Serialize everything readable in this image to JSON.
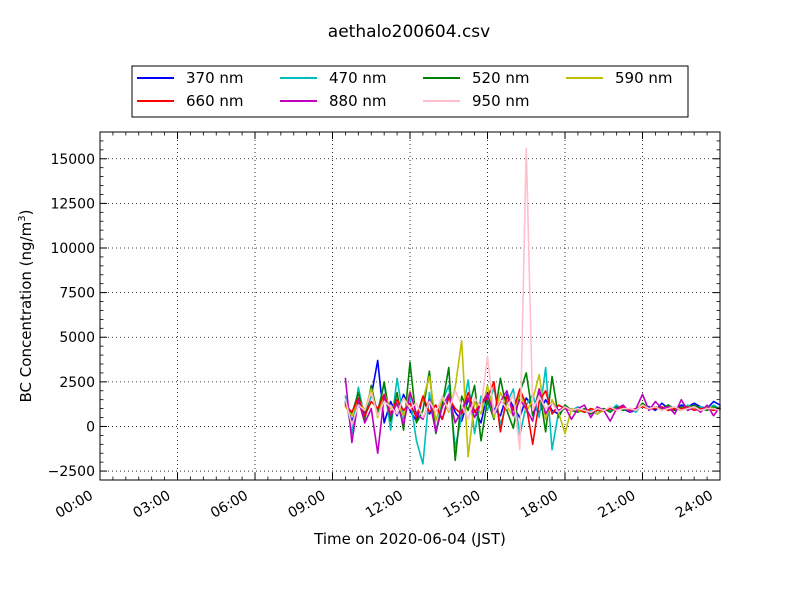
{
  "chart_data": {
    "type": "line",
    "title": "aethalo200604.csv",
    "xlabel": "Time on 2020-06-04 (JST)",
    "ylabel_main": "BC Concentration (ng/m",
    "ylabel_sup": "3",
    "ylabel_tail": ")",
    "xlim": [
      "00:00",
      "24:00"
    ],
    "xlim_hours": [
      0,
      24
    ],
    "ylim": [
      -3000,
      16500
    ],
    "x_ticks": [
      {
        "hour": 0,
        "label": "00:00"
      },
      {
        "hour": 3,
        "label": "03:00"
      },
      {
        "hour": 6,
        "label": "06:00"
      },
      {
        "hour": 9,
        "label": "09:00"
      },
      {
        "hour": 12,
        "label": "12:00"
      },
      {
        "hour": 15,
        "label": "15:00"
      },
      {
        "hour": 18,
        "label": "18:00"
      },
      {
        "hour": 21,
        "label": "21:00"
      },
      {
        "hour": 24,
        "label": "24:00"
      }
    ],
    "y_ticks": [
      {
        "value": -2500,
        "label": "−2500"
      },
      {
        "value": 0,
        "label": "0"
      },
      {
        "value": 2500,
        "label": "2500"
      },
      {
        "value": 5000,
        "label": "5000"
      },
      {
        "value": 7500,
        "label": "7500"
      },
      {
        "value": 10000,
        "label": "10000"
      },
      {
        "value": 12500,
        "label": "12500"
      },
      {
        "value": 15000,
        "label": "15000"
      }
    ],
    "grid": true,
    "legend_placement": "top-center above plot",
    "series": [
      {
        "name": "370 nm",
        "color": "#0000ff",
        "x": [
          "09:30",
          "09:45",
          "10:00",
          "10:15",
          "10:30",
          "10:45",
          "11:00",
          "11:15",
          "11:30",
          "11:45",
          "12:00",
          "12:15",
          "12:30",
          "12:45",
          "13:00",
          "13:15",
          "13:30",
          "13:45",
          "14:00",
          "14:15",
          "14:30",
          "14:45",
          "15:00",
          "15:15",
          "15:30",
          "15:45",
          "16:00",
          "16:15",
          "16:30",
          "16:45",
          "17:00",
          "17:15",
          "17:30",
          "17:45",
          "18:00",
          "18:15",
          "18:30",
          "18:45",
          "19:00",
          "19:15",
          "19:30",
          "19:45",
          "20:00",
          "20:15",
          "20:30",
          "20:45",
          "21:00",
          "21:15",
          "21:30",
          "21:45",
          "22:00",
          "22:15",
          "22:30",
          "22:45",
          "23:00",
          "23:15",
          "23:30",
          "23:45",
          "24:00"
        ],
        "values": [
          1400,
          300,
          1200,
          800,
          1700,
          3700,
          200,
          1400,
          600,
          1800,
          900,
          300,
          1600,
          700,
          1200,
          400,
          1700,
          800,
          300,
          1500,
          900,
          200,
          1900,
          1000,
          600,
          1800,
          1100,
          500,
          1600,
          1100,
          800,
          1500,
          900,
          700,
          1100,
          900,
          1000,
          800,
          900,
          700,
          1000,
          900,
          1100,
          1000,
          800,
          900,
          1200,
          1100,
          900,
          1300,
          1000,
          900,
          1200,
          1100,
          1300,
          1100,
          1000,
          1400,
          1200
        ]
      },
      {
        "name": "470 nm",
        "color": "#00bfbf",
        "x": [
          "09:30",
          "09:45",
          "10:00",
          "10:15",
          "10:30",
          "10:45",
          "11:00",
          "11:15",
          "11:30",
          "11:45",
          "12:00",
          "12:15",
          "12:30",
          "12:45",
          "13:00",
          "13:15",
          "13:30",
          "13:45",
          "14:00",
          "14:15",
          "14:30",
          "14:45",
          "15:00",
          "15:15",
          "15:30",
          "15:45",
          "16:00",
          "16:15",
          "16:30",
          "16:45",
          "17:00",
          "17:15",
          "17:30",
          "17:45",
          "18:00",
          "18:15",
          "18:30",
          "18:45",
          "19:00",
          "19:15",
          "19:30",
          "19:45",
          "20:00",
          "20:15",
          "20:30",
          "20:45",
          "21:00",
          "21:15",
          "21:30",
          "21:45",
          "22:00",
          "22:15",
          "22:30",
          "22:45",
          "23:00",
          "23:15",
          "23:30",
          "23:45",
          "24:00"
        ],
        "values": [
          1700,
          -400,
          2200,
          500,
          1800,
          900,
          2400,
          -200,
          2700,
          400,
          1600,
          -800,
          -2100,
          1900,
          -300,
          1400,
          2300,
          -1200,
          600,
          2600,
          -400,
          1700,
          900,
          2200,
          100,
          1300,
          2100,
          -500,
          1200,
          1800,
          500,
          3300,
          -1300,
          800,
          1000,
          900,
          1100,
          800,
          900,
          700,
          1000,
          900,
          1200,
          900,
          1000,
          800,
          1300,
          1000,
          1100,
          900,
          1200,
          1000,
          900,
          1200,
          1000,
          1100,
          900,
          1200,
          1000
        ]
      },
      {
        "name": "520 nm",
        "color": "#008000",
        "x": [
          "09:30",
          "09:45",
          "10:00",
          "10:15",
          "10:30",
          "10:45",
          "11:00",
          "11:15",
          "11:30",
          "11:45",
          "12:00",
          "12:15",
          "12:30",
          "12:45",
          "13:00",
          "13:15",
          "13:30",
          "13:45",
          "14:00",
          "14:15",
          "14:30",
          "14:45",
          "15:00",
          "15:15",
          "15:30",
          "15:45",
          "16:00",
          "16:15",
          "16:30",
          "16:45",
          "17:00",
          "17:15",
          "17:30",
          "17:45",
          "18:00",
          "18:15",
          "18:30",
          "18:45",
          "19:00",
          "19:15",
          "19:30",
          "19:45",
          "20:00",
          "20:15",
          "20:30",
          "20:45",
          "21:00",
          "21:15",
          "21:30",
          "21:45",
          "22:00",
          "22:15",
          "22:30",
          "22:45",
          "23:00",
          "23:15",
          "23:30",
          "23:45",
          "24:00"
        ],
        "values": [
          1300,
          700,
          1900,
          400,
          2300,
          600,
          2500,
          300,
          1900,
          -200,
          3600,
          200,
          900,
          3100,
          -400,
          1200,
          3300,
          -1900,
          1700,
          900,
          2300,
          -800,
          1500,
          400,
          2700,
          900,
          -100,
          1900,
          3000,
          600,
          2100,
          -300,
          2800,
          500,
          1200,
          900,
          800,
          1000,
          700,
          900,
          1000,
          800,
          1100,
          900,
          1000,
          900,
          1300,
          1000,
          1100,
          1000,
          1200,
          900,
          1100,
          1000,
          1200,
          1000,
          900,
          1100,
          1000
        ]
      },
      {
        "name": "590 nm",
        "color": "#bfbf00",
        "x": [
          "09:30",
          "09:45",
          "10:00",
          "10:15",
          "10:30",
          "10:45",
          "11:00",
          "11:15",
          "11:30",
          "11:45",
          "12:00",
          "12:15",
          "12:30",
          "12:45",
          "13:00",
          "13:15",
          "13:30",
          "13:45",
          "14:00",
          "14:15",
          "14:30",
          "14:45",
          "15:00",
          "15:15",
          "15:30",
          "15:45",
          "16:00",
          "16:15",
          "16:30",
          "16:45",
          "17:00",
          "17:15",
          "17:30",
          "17:45",
          "18:00",
          "18:15",
          "18:30",
          "18:45",
          "19:00",
          "19:15",
          "19:30",
          "19:45",
          "20:00",
          "20:15",
          "20:30",
          "20:45",
          "21:00",
          "21:15",
          "21:30",
          "21:45",
          "22:00",
          "22:15",
          "22:30",
          "22:45",
          "23:00",
          "23:15",
          "23:30",
          "23:45",
          "24:00"
        ],
        "values": [
          1100,
          600,
          1500,
          900,
          2100,
          500,
          1800,
          1000,
          1300,
          600,
          2000,
          700,
          1500,
          2800,
          300,
          1600,
          800,
          2200,
          4800,
          -1700,
          1400,
          700,
          2300,
          500,
          1900,
          1100,
          600,
          2000,
          800,
          1500,
          2900,
          400,
          1500,
          800,
          -400,
          1000,
          900,
          800,
          1000,
          700,
          900,
          1000,
          900,
          1100,
          900,
          1000,
          1200,
          1000,
          1100,
          900,
          1100,
          1000,
          900,
          1100,
          1000,
          900,
          1100,
          1000,
          900
        ]
      },
      {
        "name": "660 nm",
        "color": "#ff0000",
        "x": [
          "09:30",
          "09:45",
          "10:00",
          "10:15",
          "10:30",
          "10:45",
          "11:00",
          "11:15",
          "11:30",
          "11:45",
          "12:00",
          "12:15",
          "12:30",
          "12:45",
          "13:00",
          "13:15",
          "13:30",
          "13:45",
          "14:00",
          "14:15",
          "14:30",
          "14:45",
          "15:00",
          "15:15",
          "15:30",
          "15:45",
          "16:00",
          "16:15",
          "16:30",
          "16:45",
          "17:00",
          "17:15",
          "17:30",
          "17:45",
          "18:00",
          "18:15",
          "18:30",
          "18:45",
          "19:00",
          "19:15",
          "19:30",
          "19:45",
          "20:00",
          "20:15",
          "20:30",
          "20:45",
          "21:00",
          "21:15",
          "21:30",
          "21:45",
          "22:00",
          "22:15",
          "22:30",
          "22:45",
          "23:00",
          "23:15",
          "23:30",
          "23:45",
          "24:00"
        ],
        "values": [
          1200,
          800,
          1600,
          600,
          1400,
          1000,
          1800,
          700,
          1500,
          900,
          1300,
          500,
          1700,
          800,
          1200,
          400,
          1600,
          1000,
          700,
          1900,
          800,
          1300,
          1600,
          2500,
          -300,
          1700,
          900,
          2100,
          1200,
          -1000,
          1400,
          2000,
          700,
          1200,
          1000,
          900,
          1000,
          800,
          1000,
          900,
          900,
          1000,
          900,
          1100,
          900,
          1000,
          1100,
          1000,
          1000,
          1100,
          900,
          1000,
          1000,
          1100,
          900,
          1000,
          1000,
          900,
          1000
        ]
      },
      {
        "name": "880 nm",
        "color": "#bf00bf",
        "x": [
          "09:30",
          "09:45",
          "10:00",
          "10:15",
          "10:30",
          "10:45",
          "11:00",
          "11:15",
          "11:30",
          "11:45",
          "12:00",
          "12:15",
          "12:30",
          "12:45",
          "13:00",
          "13:15",
          "13:30",
          "13:45",
          "14:00",
          "14:15",
          "14:30",
          "14:45",
          "15:00",
          "15:15",
          "15:30",
          "15:45",
          "16:00",
          "16:15",
          "16:30",
          "16:45",
          "17:00",
          "17:15",
          "17:30",
          "17:45",
          "18:00",
          "18:15",
          "18:30",
          "18:45",
          "19:00",
          "19:15",
          "19:30",
          "19:45",
          "20:00",
          "20:15",
          "20:30",
          "20:45",
          "21:00",
          "21:15",
          "21:30",
          "21:45",
          "22:00",
          "22:15",
          "22:30",
          "22:45",
          "23:00",
          "23:15",
          "23:30",
          "23:45",
          "24:00"
        ],
        "values": [
          2700,
          -900,
          1500,
          200,
          1000,
          -1500,
          1700,
          600,
          1300,
          100,
          1900,
          700,
          400,
          1500,
          -300,
          1100,
          1800,
          200,
          900,
          1600,
          500,
          1300,
          1800,
          700,
          1400,
          2000,
          600,
          1500,
          1000,
          300,
          2100,
          700,
          1300,
          900,
          1100,
          400,
          1000,
          1200,
          500,
          1100,
          900,
          300,
          1000,
          1200,
          800,
          1000,
          1800,
          900,
          1400,
          1000,
          1100,
          700,
          1500,
          900,
          1100,
          800,
          1200,
          600,
          1100
        ]
      },
      {
        "name": "950 nm",
        "color": "#ffc0cb",
        "x": [
          "09:30",
          "09:45",
          "10:00",
          "10:15",
          "10:30",
          "10:45",
          "11:00",
          "11:15",
          "11:30",
          "11:45",
          "12:00",
          "12:15",
          "12:30",
          "12:45",
          "13:00",
          "13:15",
          "13:30",
          "13:45",
          "14:00",
          "14:15",
          "14:30",
          "14:45",
          "15:00",
          "15:15",
          "15:30",
          "15:45",
          "16:00",
          "16:15",
          "16:30",
          "16:45",
          "17:00",
          "17:15",
          "17:30",
          "17:45",
          "18:00",
          "18:15",
          "18:30",
          "18:45",
          "19:00",
          "19:15",
          "19:30",
          "19:45",
          "20:00",
          "20:15",
          "20:30",
          "20:45",
          "21:00",
          "21:15",
          "21:30",
          "21:45",
          "22:00",
          "22:15",
          "22:30",
          "22:45",
          "23:00",
          "23:15",
          "23:30",
          "23:45",
          "24:00"
        ],
        "values": [
          1500,
          100,
          1200,
          900,
          1900,
          600,
          1400,
          1100,
          700,
          1600,
          1000,
          1300,
          500,
          1400,
          800,
          1700,
          900,
          2000,
          1200,
          400,
          1600,
          1100,
          3900,
          700,
          1500,
          1000,
          1800,
          -1300,
          15600,
          900,
          1700,
          1000,
          1300,
          800,
          1100,
          900,
          1000,
          900,
          800,
          1000,
          900,
          1100,
          900,
          1000,
          1000,
          900,
          1200,
          1000,
          1100,
          900,
          1000,
          1100,
          900,
          1000,
          1100,
          900,
          1000,
          1000,
          900
        ]
      }
    ]
  }
}
